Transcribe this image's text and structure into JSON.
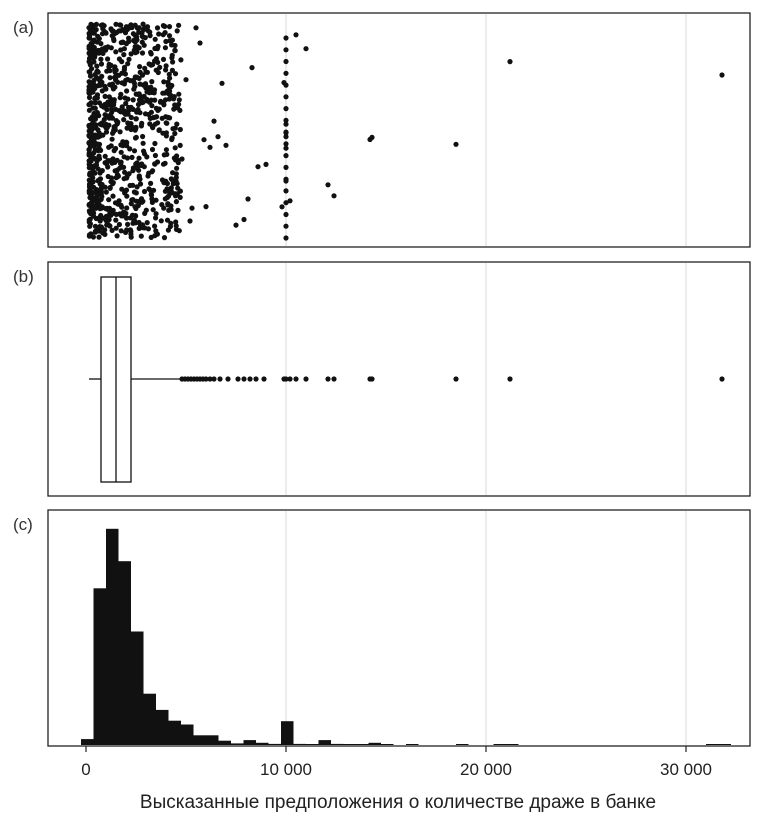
{
  "chart_data": {
    "type": "scatter",
    "xlabel": "Высказанные предположения о количестве драже в банке",
    "xlim": [
      -1700,
      33000
    ],
    "xticks": [
      {
        "value": 0,
        "label": "0"
      },
      {
        "value": 10000,
        "label": "10 000"
      },
      {
        "value": 20000,
        "label": "20 000"
      },
      {
        "value": 30000,
        "label": "30 000"
      }
    ],
    "grid": true,
    "panels": [
      {
        "label": "(a)",
        "type": "strip"
      },
      {
        "label": "(b)",
        "type": "boxplot"
      },
      {
        "label": "(c)",
        "type": "histogram"
      }
    ],
    "strip": {
      "note": "jittered strip plot of all guesses",
      "outliers_x": [
        4800,
        5000,
        5200,
        5300,
        5500,
        5700,
        5900,
        6000,
        6200,
        6400,
        6600,
        6800,
        7000,
        7500,
        7900,
        8100,
        8300,
        8600,
        9000,
        9800,
        9900,
        10000,
        10000,
        10000,
        10000,
        10000,
        10200,
        10500,
        11000,
        12100,
        12400,
        14200,
        14300,
        18500,
        21200,
        31800
      ]
    },
    "boxplot": {
      "min": 150,
      "q1": 750,
      "median": 1500,
      "q3": 2250,
      "whisker_high": 4700,
      "outliers": [
        4800,
        4950,
        5100,
        5250,
        5400,
        5550,
        5700,
        5850,
        6000,
        6200,
        6400,
        6700,
        7100,
        7600,
        7900,
        8200,
        8500,
        8900,
        9900,
        10000,
        10200,
        10500,
        11000,
        12100,
        12400,
        14200,
        14300,
        18500,
        21200,
        31800
      ]
    },
    "histogram": {
      "bin_width": 625,
      "bins_start": [
        -250,
        375,
        1000,
        1625,
        2250,
        2875,
        3500,
        4125,
        4750,
        5375,
        6000,
        6625,
        7250,
        7875,
        8500,
        9125,
        9750,
        10375,
        11000,
        11625,
        12250,
        12875,
        13500,
        14125,
        14750,
        15375,
        16000,
        16625,
        17250,
        17875,
        18500,
        19125,
        19750,
        20375,
        21000,
        21625,
        22250,
        22875,
        23500,
        24125,
        24750,
        25375,
        26000,
        26625,
        27250,
        27875,
        28500,
        29125,
        29750,
        30375,
        31000,
        31625
      ],
      "counts": [
        1.1,
        29,
        40,
        34,
        21,
        9.5,
        6.5,
        4.5,
        3.8,
        1.8,
        1.8,
        0.8,
        0.3,
        0.9,
        0.4,
        0.2,
        4.4,
        0.2,
        0.1,
        0.9,
        0.2,
        0.1,
        0.1,
        0.4,
        0.1,
        0,
        0.1,
        0,
        0,
        0,
        0.1,
        0,
        0,
        0.1,
        0.1,
        0,
        0,
        0,
        0,
        0,
        0,
        0,
        0,
        0,
        0,
        0,
        0,
        0,
        0,
        0,
        0.1,
        0.1
      ],
      "ymax": 42
    }
  }
}
